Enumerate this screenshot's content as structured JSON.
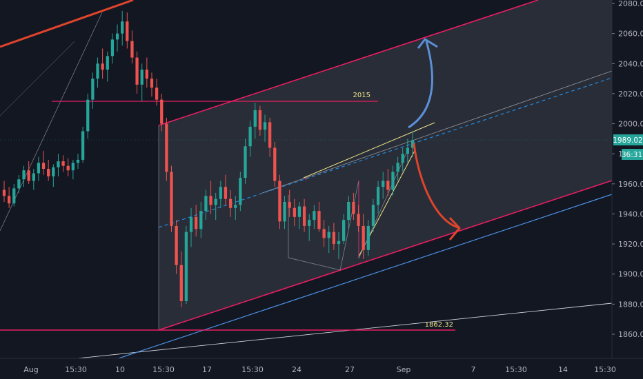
{
  "chart_data": {
    "type": "candlestick",
    "title": "",
    "y_axis": {
      "position": "right",
      "range": [
        1844,
        2082
      ],
      "ticks": [
        1860,
        1880,
        1900,
        1920,
        1940,
        1960,
        1980,
        2000,
        2020,
        2040,
        2060,
        2080
      ],
      "tick_labels": [
        "1860.00",
        "1880.00",
        "1900.00",
        "1920.00",
        "1940.00",
        "1960.00",
        "1980.00",
        "2000.00",
        "2020.00",
        "2040.00",
        "2060.00",
        "2080.00"
      ]
    },
    "x_axis": {
      "tick_labels": [
        "Aug",
        "15:30",
        "10",
        "15:30",
        "17",
        "15:30",
        "24",
        "27",
        "Sep",
        "7",
        "15:30",
        "14",
        "15:30"
      ]
    },
    "price_labels": {
      "current_price": "1989.02",
      "countdown": "36:31",
      "current_color": "#26a69a"
    },
    "annotations": {
      "resistance_label": "2015",
      "resistance_value": 2015,
      "support_label": "1862.32",
      "support_value": 1862.32
    },
    "candles": [
      [
        1956,
        1962,
        1948,
        1952
      ],
      [
        1952,
        1958,
        1944,
        1947
      ],
      [
        1947,
        1960,
        1945,
        1957
      ],
      [
        1957,
        1966,
        1954,
        1963
      ],
      [
        1963,
        1972,
        1958,
        1969
      ],
      [
        1969,
        1975,
        1960,
        1962
      ],
      [
        1962,
        1970,
        1956,
        1967
      ],
      [
        1967,
        1978,
        1962,
        1974
      ],
      [
        1974,
        1982,
        1966,
        1970
      ],
      [
        1970,
        1976,
        1962,
        1965
      ],
      [
        1965,
        1973,
        1958,
        1971
      ],
      [
        1971,
        1980,
        1965,
        1975
      ],
      [
        1975,
        1979,
        1968,
        1972
      ],
      [
        1972,
        1977,
        1965,
        1969
      ],
      [
        1969,
        1976,
        1963,
        1974
      ],
      [
        1974,
        1980,
        1970,
        1976
      ],
      [
        1976,
        1998,
        1974,
        1995
      ],
      [
        1995,
        2020,
        1990,
        2016
      ],
      [
        2016,
        2034,
        2010,
        2030
      ],
      [
        2030,
        2044,
        2024,
        2040
      ],
      [
        2040,
        2050,
        2030,
        2036
      ],
      [
        2036,
        2048,
        2028,
        2045
      ],
      [
        2045,
        2060,
        2040,
        2056
      ],
      [
        2056,
        2066,
        2048,
        2060
      ],
      [
        2060,
        2075,
        2052,
        2068
      ],
      [
        2068,
        2074,
        2050,
        2055
      ],
      [
        2055,
        2062,
        2040,
        2044
      ],
      [
        2044,
        2048,
        2020,
        2026
      ],
      [
        2026,
        2040,
        2015,
        2036
      ],
      [
        2036,
        2044,
        2024,
        2030
      ],
      [
        2030,
        2034,
        2018,
        2024
      ],
      [
        2024,
        2030,
        2012,
        2016
      ],
      [
        2016,
        2020,
        1995,
        2000
      ],
      [
        2000,
        2004,
        1962,
        1968
      ],
      [
        1968,
        1972,
        1928,
        1932
      ],
      [
        1932,
        1936,
        1900,
        1906
      ],
      [
        1906,
        1915,
        1878,
        1882
      ],
      [
        1882,
        1932,
        1880,
        1928
      ],
      [
        1928,
        1944,
        1918,
        1938
      ],
      [
        1938,
        1946,
        1925,
        1930
      ],
      [
        1930,
        1948,
        1924,
        1942
      ],
      [
        1942,
        1956,
        1936,
        1952
      ],
      [
        1952,
        1962,
        1940,
        1946
      ],
      [
        1946,
        1954,
        1936,
        1950
      ],
      [
        1950,
        1962,
        1944,
        1958
      ],
      [
        1958,
        1966,
        1946,
        1950
      ],
      [
        1950,
        1956,
        1938,
        1944
      ],
      [
        1944,
        1952,
        1936,
        1946
      ],
      [
        1946,
        1968,
        1942,
        1964
      ],
      [
        1964,
        1990,
        1960,
        1985
      ],
      [
        1985,
        2002,
        1978,
        1998
      ],
      [
        1998,
        2014,
        1990,
        2009
      ],
      [
        2009,
        2012,
        1992,
        1996
      ],
      [
        1996,
        2006,
        1988,
        2001
      ],
      [
        2001,
        2004,
        1978,
        1984
      ],
      [
        1984,
        1988,
        1958,
        1962
      ],
      [
        1962,
        1966,
        1930,
        1935
      ],
      [
        1935,
        1952,
        1930,
        1948
      ],
      [
        1948,
        1956,
        1938,
        1944
      ],
      [
        1944,
        1950,
        1932,
        1938
      ],
      [
        1938,
        1948,
        1930,
        1945
      ],
      [
        1945,
        1950,
        1928,
        1932
      ],
      [
        1932,
        1940,
        1922,
        1936
      ],
      [
        1936,
        1946,
        1930,
        1942
      ],
      [
        1942,
        1948,
        1928,
        1930
      ],
      [
        1930,
        1936,
        1918,
        1924
      ],
      [
        1924,
        1932,
        1914,
        1928
      ],
      [
        1928,
        1934,
        1916,
        1920
      ],
      [
        1920,
        1928,
        1910,
        1922
      ],
      [
        1922,
        1940,
        1920,
        1936
      ],
      [
        1936,
        1952,
        1930,
        1948
      ],
      [
        1948,
        1954,
        1936,
        1940
      ],
      [
        1940,
        1946,
        1928,
        1932
      ],
      [
        1932,
        1940,
        1910,
        1916
      ],
      [
        1916,
        1936,
        1912,
        1932
      ],
      [
        1932,
        1950,
        1928,
        1946
      ],
      [
        1946,
        1962,
        1940,
        1958
      ],
      [
        1958,
        1968,
        1950,
        1962
      ],
      [
        1962,
        1970,
        1952,
        1956
      ],
      [
        1956,
        1972,
        1952,
        1968
      ],
      [
        1968,
        1978,
        1962,
        1974
      ],
      [
        1974,
        1984,
        1968,
        1980
      ],
      [
        1980,
        1990,
        1974,
        1984
      ],
      [
        1984,
        1995,
        1978,
        1989
      ]
    ],
    "grid": false,
    "legend": "none"
  }
}
